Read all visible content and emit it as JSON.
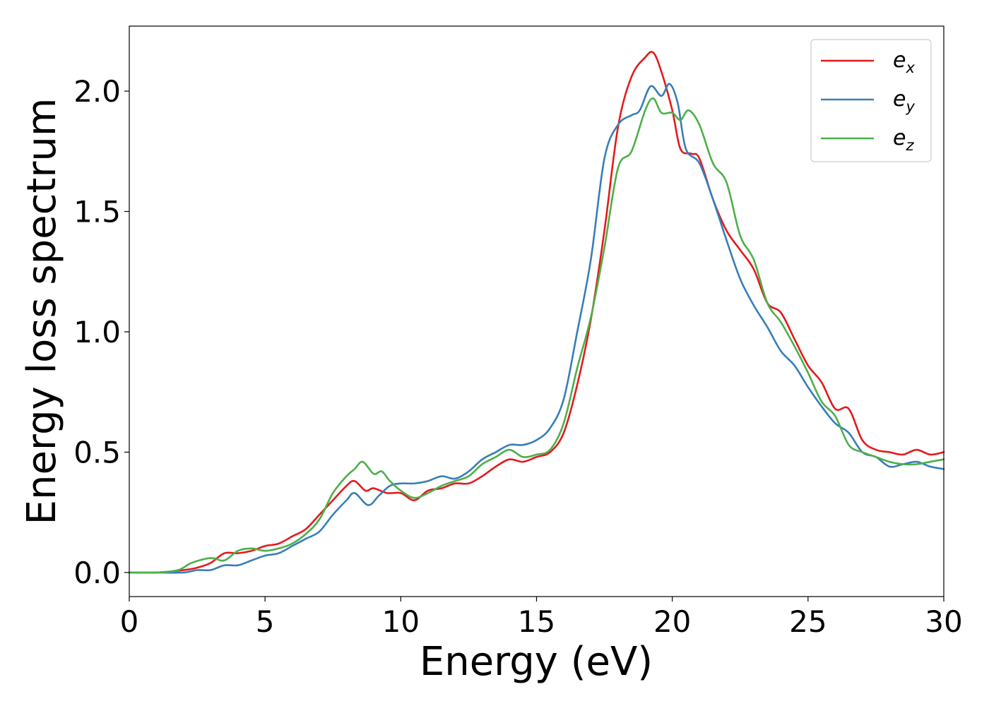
{
  "chart_data": {
    "type": "line",
    "title": "",
    "xlabel": "Energy (eV)",
    "ylabel": "Energy loss spectrum",
    "xlim": [
      0,
      30
    ],
    "ylim": [
      -0.1,
      2.27
    ],
    "xticks": [
      0,
      5,
      10,
      15,
      20,
      25,
      30
    ],
    "xtick_labels": [
      "0",
      "5",
      "10",
      "15",
      "20",
      "25",
      "30"
    ],
    "yticks": [
      0.0,
      0.5,
      1.0,
      1.5,
      2.0
    ],
    "ytick_labels": [
      "0.0",
      "0.5",
      "1.0",
      "1.5",
      "2.0"
    ],
    "grid": false,
    "legend_position": "top-right",
    "series": [
      {
        "name": "e_x",
        "label_main": "e",
        "label_sub": "x",
        "color": "#e41a1c",
        "x": [
          0,
          1,
          2,
          2.5,
          3,
          3.5,
          4,
          4.5,
          5,
          5.5,
          6,
          6.5,
          7,
          7.5,
          8,
          8.3,
          8.7,
          9,
          9.5,
          10,
          10.5,
          11,
          11.5,
          12,
          12.5,
          13,
          13.5,
          14,
          14.5,
          15,
          15.5,
          16,
          16.5,
          17,
          17.5,
          18,
          18.5,
          19,
          19.3,
          19.6,
          20,
          20.3,
          20.7,
          21,
          21.5,
          22,
          22.5,
          23,
          23.5,
          24,
          24.5,
          25,
          25.5,
          26,
          26.5,
          27,
          27.5,
          28,
          28.5,
          29,
          29.5,
          30
        ],
        "y": [
          0,
          0,
          0.01,
          0.02,
          0.04,
          0.08,
          0.08,
          0.09,
          0.11,
          0.12,
          0.15,
          0.18,
          0.24,
          0.3,
          0.36,
          0.38,
          0.34,
          0.35,
          0.33,
          0.33,
          0.3,
          0.34,
          0.35,
          0.37,
          0.37,
          0.4,
          0.44,
          0.47,
          0.46,
          0.48,
          0.5,
          0.58,
          0.78,
          1.05,
          1.42,
          1.85,
          2.06,
          2.14,
          2.16,
          2.08,
          1.92,
          1.76,
          1.74,
          1.72,
          1.55,
          1.42,
          1.34,
          1.26,
          1.12,
          1.08,
          0.97,
          0.86,
          0.79,
          0.68,
          0.68,
          0.55,
          0.51,
          0.5,
          0.49,
          0.51,
          0.49,
          0.5
        ]
      },
      {
        "name": "e_y",
        "label_main": "e",
        "label_sub": "y",
        "color": "#377eb8",
        "x": [
          0,
          1,
          2,
          2.5,
          3,
          3.5,
          4,
          4.5,
          5,
          5.5,
          6,
          6.5,
          7,
          7.5,
          8,
          8.3,
          8.8,
          9.2,
          9.6,
          10,
          10.5,
          11,
          11.5,
          12,
          12.5,
          13,
          13.5,
          14,
          14.5,
          15,
          15.5,
          16,
          16.5,
          17,
          17.5,
          18,
          18.5,
          18.8,
          19.2,
          19.6,
          19.9,
          20.2,
          20.5,
          21,
          21.5,
          22,
          22.5,
          23,
          23.5,
          24,
          24.5,
          25,
          25.5,
          26,
          26.5,
          27,
          27.5,
          28,
          28.5,
          29,
          29.5,
          30
        ],
        "y": [
          0,
          0,
          0,
          0.01,
          0.01,
          0.03,
          0.03,
          0.05,
          0.07,
          0.08,
          0.11,
          0.14,
          0.17,
          0.24,
          0.3,
          0.33,
          0.28,
          0.32,
          0.36,
          0.37,
          0.37,
          0.38,
          0.4,
          0.39,
          0.42,
          0.47,
          0.5,
          0.53,
          0.53,
          0.55,
          0.6,
          0.72,
          1.0,
          1.3,
          1.72,
          1.86,
          1.9,
          1.92,
          2.02,
          1.98,
          2.03,
          1.95,
          1.76,
          1.7,
          1.55,
          1.38,
          1.22,
          1.11,
          1.02,
          0.92,
          0.86,
          0.77,
          0.69,
          0.62,
          0.58,
          0.5,
          0.48,
          0.44,
          0.45,
          0.46,
          0.44,
          0.43
        ]
      },
      {
        "name": "e_z",
        "label_main": "e",
        "label_sub": "z",
        "color": "#4daf4a",
        "x": [
          0,
          1,
          1.8,
          2.3,
          3,
          3.5,
          4,
          4.5,
          5,
          5.5,
          6,
          6.5,
          7,
          7.5,
          8,
          8.3,
          8.6,
          9,
          9.3,
          9.6,
          10,
          10.5,
          11,
          11.5,
          12,
          12.5,
          13,
          13.5,
          14,
          14.5,
          15,
          15.5,
          16,
          16.5,
          17,
          17.5,
          18,
          18.5,
          19,
          19.3,
          19.6,
          20,
          20.3,
          20.6,
          21,
          21.5,
          22,
          22.5,
          23,
          23.5,
          24,
          24.5,
          25,
          25.5,
          26,
          26.5,
          27,
          27.5,
          28,
          28.5,
          29,
          29.5,
          30
        ],
        "y": [
          0,
          0,
          0.01,
          0.04,
          0.06,
          0.05,
          0.09,
          0.1,
          0.09,
          0.1,
          0.12,
          0.16,
          0.22,
          0.33,
          0.4,
          0.43,
          0.46,
          0.41,
          0.42,
          0.38,
          0.34,
          0.31,
          0.33,
          0.36,
          0.38,
          0.4,
          0.45,
          0.48,
          0.51,
          0.48,
          0.49,
          0.51,
          0.62,
          0.85,
          1.06,
          1.35,
          1.68,
          1.75,
          1.92,
          1.97,
          1.91,
          1.91,
          1.88,
          1.92,
          1.86,
          1.7,
          1.62,
          1.4,
          1.3,
          1.12,
          1.04,
          0.94,
          0.83,
          0.71,
          0.65,
          0.53,
          0.5,
          0.48,
          0.46,
          0.45,
          0.45,
          0.46,
          0.47
        ]
      }
    ]
  }
}
